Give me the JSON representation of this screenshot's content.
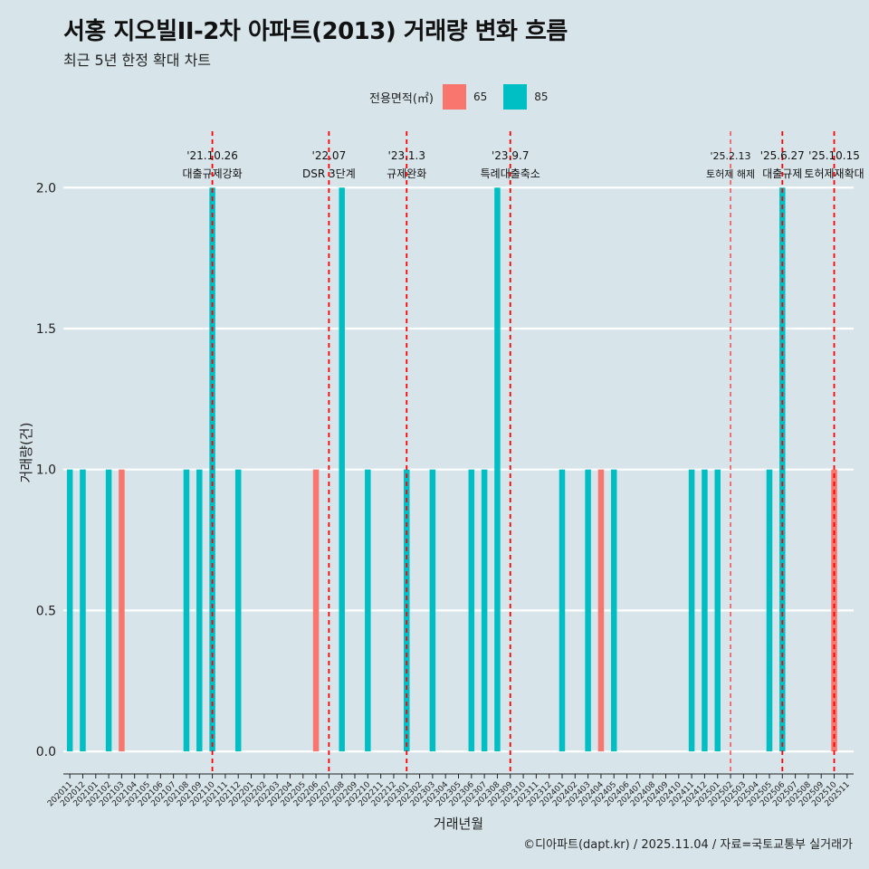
{
  "title": "서홍 지오빌II-2차 아파트(2013) 거래량 변화 흐름",
  "subtitle": "최근 5년 한정 확대 차트",
  "caption": "©디아파트(dapt.kr) / 2025.11.04 / 자료=국토교통부 실거래가",
  "legend": {
    "title": "전용면적(㎡)",
    "items": [
      {
        "label": "65",
        "color": "#f8766d"
      },
      {
        "label": "85",
        "color": "#00bfc4"
      }
    ]
  },
  "chart_data": {
    "type": "bar",
    "title": "서홍 지오빌II-2차 아파트(2013) 거래량 변화 흐름",
    "xlabel": "거래년월",
    "ylabel": "거래량(건)",
    "ylim": [
      -0.08,
      2.2
    ],
    "yticks": [
      "0.0",
      "0.5",
      "1.0",
      "1.5",
      "2.0"
    ],
    "categories": [
      "202011",
      "202012",
      "202101",
      "202102",
      "202103",
      "202104",
      "202105",
      "202106",
      "202107",
      "202108",
      "202109",
      "202110",
      "202111",
      "202112",
      "202201",
      "202202",
      "202203",
      "202204",
      "202205",
      "202206",
      "202207",
      "202208",
      "202209",
      "202210",
      "202211",
      "202212",
      "202301",
      "202302",
      "202303",
      "202304",
      "202305",
      "202306",
      "202307",
      "202308",
      "202309",
      "202310",
      "202311",
      "202312",
      "202401",
      "202402",
      "202403",
      "202404",
      "202405",
      "202406",
      "202407",
      "202408",
      "202409",
      "202410",
      "202411",
      "202412",
      "202501",
      "202502",
      "202503",
      "202504",
      "202505",
      "202506",
      "202507",
      "202508",
      "202509",
      "202510",
      "202511"
    ],
    "series": [
      {
        "name": "65",
        "color": "#f8766d",
        "values": [
          0,
          0,
          0,
          0,
          1,
          0,
          0,
          0,
          0,
          0,
          0,
          0,
          0,
          0,
          0,
          0,
          0,
          0,
          0,
          1,
          0,
          0,
          0,
          0,
          0,
          0,
          0,
          0,
          0,
          0,
          0,
          0,
          0,
          0,
          0,
          0,
          0,
          0,
          0,
          0,
          0,
          1,
          0,
          0,
          0,
          0,
          0,
          0,
          0,
          0,
          0,
          0,
          0,
          0,
          0,
          0,
          0,
          0,
          0,
          1,
          0
        ]
      },
      {
        "name": "85",
        "color": "#00bfc4",
        "values": [
          1,
          1,
          0,
          1,
          0,
          0,
          0,
          0,
          0,
          1,
          1,
          2,
          0,
          1,
          0,
          0,
          0,
          0,
          0,
          0,
          0,
          2,
          0,
          1,
          0,
          0,
          1,
          0,
          1,
          0,
          0,
          1,
          1,
          2,
          0,
          0,
          0,
          0,
          1,
          0,
          1,
          0,
          1,
          0,
          0,
          0,
          0,
          0,
          1,
          1,
          1,
          0,
          0,
          0,
          1,
          2,
          0,
          0,
          0,
          0,
          0
        ]
      }
    ],
    "events": [
      {
        "date": "'21.10.26",
        "label": "대출규제강화",
        "at": "202110"
      },
      {
        "date": "'22.07",
        "label": "DSR 3단계",
        "at": "202207"
      },
      {
        "date": "'23.1.3",
        "label": "규제완화",
        "at": "202301"
      },
      {
        "date": "'23.9.7",
        "label": "특례대출축소",
        "at": "202309"
      },
      {
        "date": "'25.2.13",
        "label": "토허제 해제",
        "at": "202502"
      },
      {
        "date": "'25.6.27",
        "label": "대출규제",
        "at": "202506"
      },
      {
        "date": "'25.10.15",
        "label": "토허제재확대",
        "at": "202510"
      }
    ]
  }
}
